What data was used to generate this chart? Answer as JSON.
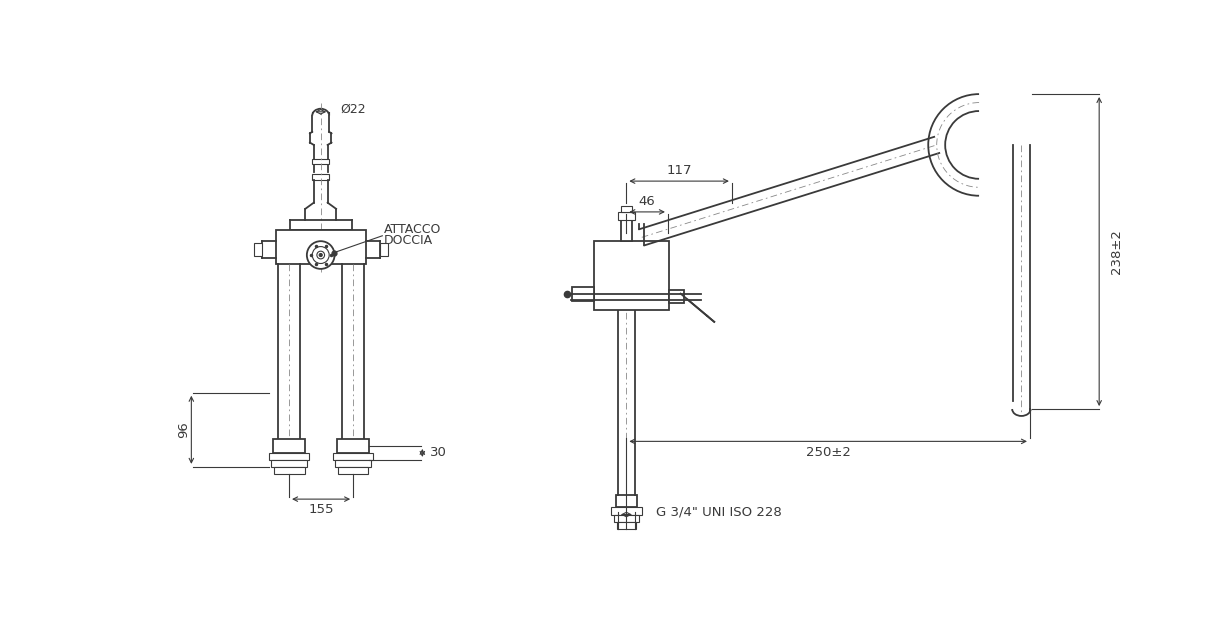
{
  "bg_color": "#ffffff",
  "line_color": "#3a3a3a",
  "fig_width": 12.29,
  "fig_height": 6.43,
  "annotations": {
    "phi22": "Ø22",
    "attacco_doccia_line1": "ATTACCO",
    "attacco_doccia_line2": "DOCCIA",
    "dim_117": "117",
    "dim_46": "46",
    "dim_96": "96",
    "dim_155": "155",
    "dim_30": "30",
    "dim_238": "238±2",
    "dim_250": "250±2",
    "thread": "G 3/4\" UNI ISO 228"
  }
}
